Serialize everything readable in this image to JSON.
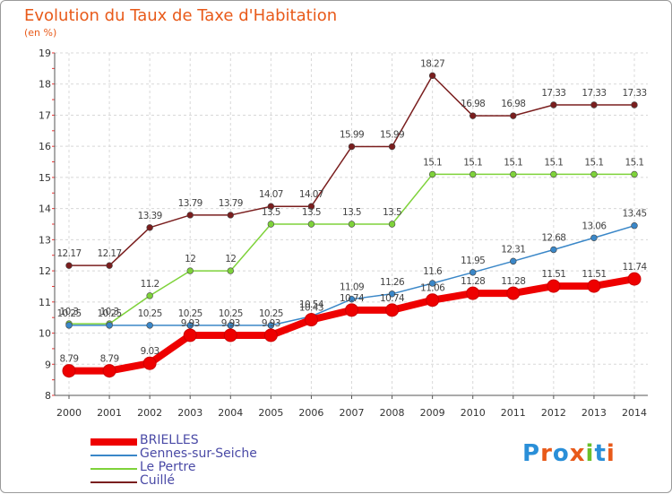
{
  "header": {
    "title": "Evolution du Taux de Taxe d'Habitation",
    "subtitle": "(en %)"
  },
  "brand": {
    "logo_text": "Proxiti",
    "logo_colors": [
      "#2a8fd8",
      "#e85a1a",
      "#2a8fd8",
      "#e85a1a",
      "#6bbf2a",
      "#2a8fd8",
      "#e85a1a"
    ]
  },
  "chart_data": {
    "type": "line",
    "x": [
      "2000",
      "2001",
      "2002",
      "2003",
      "2004",
      "2005",
      "2006",
      "2007",
      "2008",
      "2009",
      "2010",
      "2011",
      "2012",
      "2013",
      "2014"
    ],
    "yticks": [
      "8",
      "9",
      "10",
      "11",
      "12",
      "13",
      "14",
      "15",
      "16",
      "17",
      "18",
      "19"
    ],
    "ylim": [
      8,
      19
    ],
    "grid": true,
    "legend_position": "bottom-left",
    "series": [
      {
        "name": "BRIELLES",
        "color": "#ee0000",
        "style": "thick",
        "values": [
          8.79,
          8.79,
          9.03,
          9.93,
          9.93,
          9.93,
          10.43,
          10.74,
          10.74,
          11.06,
          11.28,
          11.28,
          11.51,
          11.51,
          11.74
        ],
        "labels": [
          "8.79",
          "8.79",
          "9.03",
          "9.93",
          "9.93",
          "9.93",
          "10.43",
          "10.74",
          "10.74",
          "11.06",
          "11.28",
          "11.28",
          "11.51",
          "11.51",
          "11.74"
        ]
      },
      {
        "name": "Gennes-sur-Seiche",
        "color": "#3a87c8",
        "style": "thin",
        "values": [
          10.25,
          10.25,
          10.25,
          10.25,
          10.25,
          10.25,
          10.54,
          11.09,
          11.26,
          11.6,
          11.95,
          12.31,
          12.68,
          13.06,
          13.45
        ],
        "labels": [
          "10.25",
          "10.25",
          "10.25",
          "10.25",
          "10.25",
          "10.25",
          "10.54",
          "11.09",
          "11.26",
          "11.6",
          "11.95",
          "12.31",
          "12.68",
          "13.06",
          "13.45"
        ]
      },
      {
        "name": "Le Pertre",
        "color": "#7ed23a",
        "style": "thin",
        "values": [
          10.3,
          10.3,
          11.2,
          12,
          12,
          13.5,
          13.5,
          13.5,
          13.5,
          15.1,
          15.1,
          15.1,
          15.1,
          15.1,
          15.1
        ],
        "labels": [
          "10.3",
          "10.3",
          "11.2",
          "12",
          "12",
          "13.5",
          "13.5",
          "13.5",
          "13.5",
          "15.1",
          "15.1",
          "15.1",
          "15.1",
          "15.1",
          "15.1"
        ]
      },
      {
        "name": "Cuillé",
        "color": "#7a1e1e",
        "style": "thin",
        "values": [
          12.17,
          12.17,
          13.39,
          13.79,
          13.79,
          14.07,
          14.07,
          15.99,
          15.99,
          18.27,
          16.98,
          16.98,
          17.33,
          17.33,
          17.33
        ],
        "labels": [
          "12.17",
          "12.17",
          "13.39",
          "13.79",
          "13.79",
          "14.07",
          "14.07",
          "15.99",
          "15.99",
          "18.27",
          "16.98",
          "16.98",
          "17.33",
          "17.33",
          "17.33"
        ]
      }
    ]
  }
}
